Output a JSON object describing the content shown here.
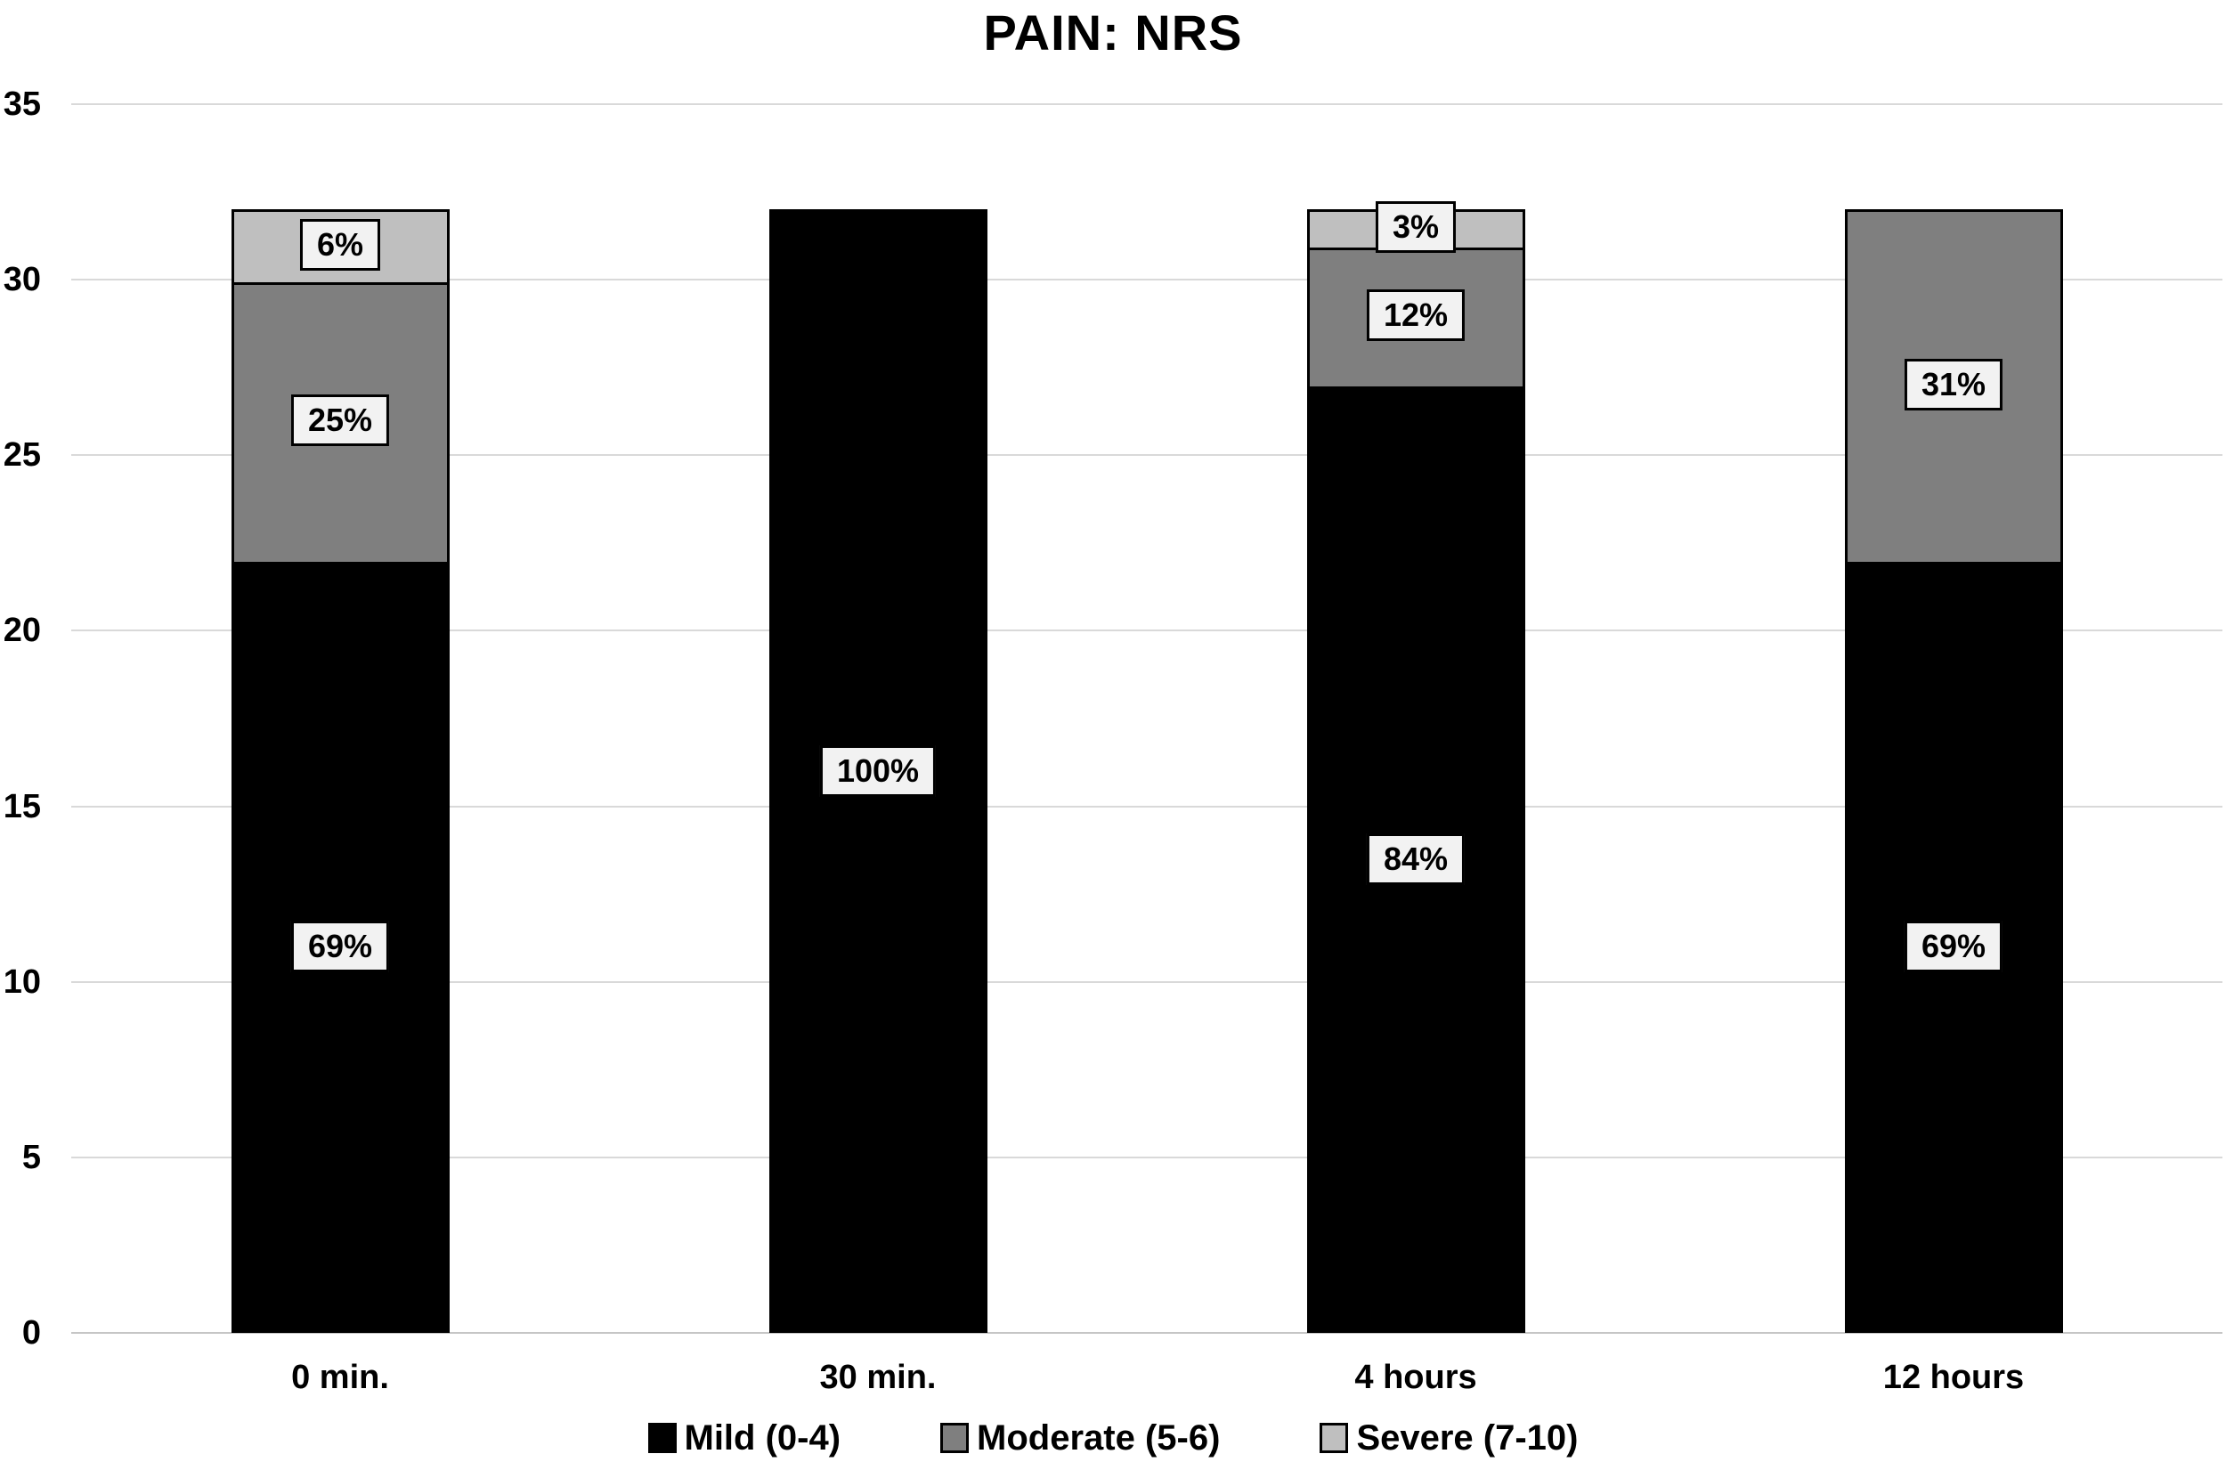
{
  "chart_data": {
    "type": "bar",
    "stacked": true,
    "title": "PAIN: NRS",
    "categories": [
      "0 min.",
      "30 min.",
      "4 hours",
      "12 hours"
    ],
    "series": [
      {
        "name": "Mild (0-4)",
        "color": "#000000",
        "values": [
          22,
          32,
          27,
          22
        ],
        "labels": [
          "69%",
          "100%",
          "84%",
          "69%"
        ]
      },
      {
        "name": "Moderate (5-6)",
        "color": "#7f7f7f",
        "values": [
          8,
          0,
          4,
          10
        ],
        "labels": [
          "25%",
          "",
          "12%",
          "31%"
        ]
      },
      {
        "name": "Severe (7-10)",
        "color": "#bfbfbf",
        "values": [
          2,
          0,
          1,
          0
        ],
        "labels": [
          "6%",
          "",
          "3%",
          ""
        ]
      }
    ],
    "bar_totals": [
      32,
      32,
      32,
      32
    ],
    "xlabel": "",
    "ylabel": "",
    "ylim": [
      0,
      35
    ],
    "yticks": [
      0,
      5,
      10,
      15,
      20,
      25,
      30,
      35
    ],
    "grid": true,
    "legend_position": "bottom",
    "colors": {
      "label_box_bg": "#f2f2f2",
      "gridline": "#d9d9d9",
      "axis_line": "#c6c6c6",
      "background": "#ffffff",
      "text": "#000000"
    }
  }
}
